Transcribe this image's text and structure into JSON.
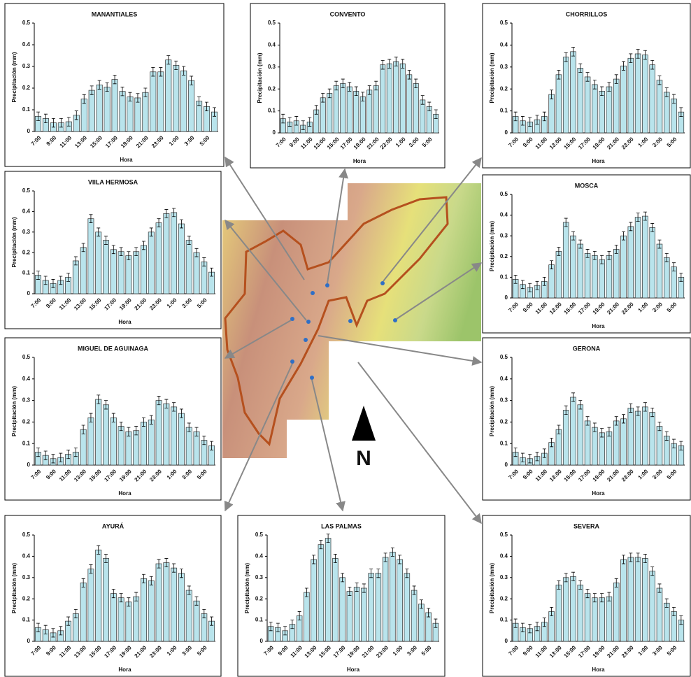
{
  "chart_data": [
    {
      "type": "bar",
      "title": "MANANTIALES",
      "y_label": "Precipitación (mm)",
      "x_label": "Hora",
      "categories": [
        "7:00",
        null,
        "9:00",
        null,
        "11:00",
        null,
        "13:00",
        null,
        "15:00",
        null,
        "17:00",
        null,
        "19:00",
        null,
        "21:00",
        null,
        "23:00",
        null,
        "1:00",
        null,
        "3:00",
        null,
        "5:00",
        null
      ],
      "values": [
        0.07,
        0.06,
        0.04,
        0.04,
        0.045,
        0.075,
        0.15,
        0.19,
        0.215,
        0.205,
        0.24,
        0.185,
        0.16,
        0.155,
        0.18,
        0.275,
        0.275,
        0.33,
        0.305,
        0.28,
        0.235,
        0.14,
        0.115,
        0.09
      ],
      "error": 0.02,
      "color": "#b9e4ec",
      "ylim": [
        0,
        0.5
      ],
      "yticks": [
        0,
        0.1,
        0.2,
        0.3,
        0.4,
        0.5
      ]
    },
    {
      "type": "bar",
      "title": "CONVENTO",
      "y_label": "Precipitación (mm)",
      "x_label": "Hora",
      "categories": [
        "7:00",
        null,
        "9:00",
        null,
        "11:00",
        null,
        "13:00",
        null,
        "15:00",
        null,
        "17:00",
        null,
        "19:00",
        null,
        "21:00",
        null,
        "23:00",
        null,
        "1:00",
        null,
        "3:00",
        null,
        "5:00",
        null
      ],
      "values": [
        0.065,
        0.05,
        0.055,
        0.035,
        0.05,
        0.105,
        0.16,
        0.18,
        0.215,
        0.225,
        0.21,
        0.19,
        0.165,
        0.195,
        0.215,
        0.31,
        0.315,
        0.325,
        0.315,
        0.265,
        0.225,
        0.15,
        0.12,
        0.085
      ],
      "error": 0.02,
      "color": "#b9e4ec",
      "ylim": [
        0,
        0.5
      ],
      "yticks": [
        0,
        0.1,
        0.2,
        0.3,
        0.4,
        0.5
      ]
    },
    {
      "type": "bar",
      "title": "CHORRILLOS",
      "y_label": "Precipitación (mm)",
      "x_label": "Hora",
      "categories": [
        "7:00",
        null,
        "9:00",
        null,
        "11:00",
        null,
        "13:00",
        null,
        "15:00",
        null,
        "17:00",
        null,
        "19:00",
        null,
        "21:00",
        null,
        "23:00",
        null,
        "1:00",
        null,
        "3:00",
        null,
        "5:00",
        null
      ],
      "values": [
        0.075,
        0.055,
        0.05,
        0.06,
        0.075,
        0.175,
        0.265,
        0.345,
        0.37,
        0.295,
        0.255,
        0.22,
        0.19,
        0.21,
        0.245,
        0.305,
        0.34,
        0.36,
        0.355,
        0.31,
        0.24,
        0.185,
        0.155,
        0.095
      ],
      "error": 0.02,
      "color": "#b9e4ec",
      "ylim": [
        0,
        0.5
      ],
      "yticks": [
        0,
        0.1,
        0.2,
        0.3,
        0.4,
        0.5
      ]
    },
    {
      "type": "bar",
      "title": "VIILA HERMOSA",
      "y_label": "Precipitación (mm)",
      "x_label": "Hora",
      "categories": [
        "7:00",
        null,
        "9:00",
        null,
        "11:00",
        null,
        "13:00",
        null,
        "15:00",
        null,
        "17:00",
        null,
        "19:00",
        null,
        "21:00",
        null,
        "23:00",
        null,
        "1:00",
        null,
        "3:00",
        null,
        "5:00",
        null
      ],
      "values": [
        0.09,
        0.065,
        0.05,
        0.065,
        0.08,
        0.16,
        0.225,
        0.365,
        0.3,
        0.26,
        0.215,
        0.205,
        0.185,
        0.205,
        0.235,
        0.3,
        0.345,
        0.39,
        0.395,
        0.34,
        0.26,
        0.2,
        0.155,
        0.105
      ],
      "error": 0.02,
      "color": "#b9e4ec",
      "ylim": [
        0,
        0.5
      ],
      "yticks": [
        0,
        0.1,
        0.2,
        0.3,
        0.4,
        0.5
      ]
    },
    {
      "type": "bar",
      "title": "MOSCA",
      "y_label": "Precipitación (mm)",
      "x_label": "Hora",
      "categories": [
        "7:00",
        null,
        "9:00",
        null,
        "11:00",
        null,
        "13:00",
        null,
        "15:00",
        null,
        "17:00",
        null,
        "19:00",
        null,
        "21:00",
        null,
        "23:00",
        null,
        "1:00",
        null,
        "3:00",
        null,
        "5:00",
        null
      ],
      "values": [
        0.09,
        0.065,
        0.05,
        0.06,
        0.08,
        0.16,
        0.225,
        0.365,
        0.3,
        0.26,
        0.215,
        0.205,
        0.185,
        0.205,
        0.235,
        0.3,
        0.345,
        0.39,
        0.395,
        0.34,
        0.26,
        0.195,
        0.15,
        0.1
      ],
      "error": 0.02,
      "color": "#b9e4ec",
      "ylim": [
        0,
        0.5
      ],
      "yticks": [
        0,
        0.1,
        0.2,
        0.3,
        0.4,
        0.5
      ]
    },
    {
      "type": "bar",
      "title": "MIGUEL DE AGUINAGA",
      "y_label": "Precipitación (mm)",
      "x_label": "Hora",
      "categories": [
        "7:00",
        null,
        "9:00",
        null,
        "11:00",
        null,
        "13:00",
        null,
        "15:00",
        null,
        "17:00",
        null,
        "19:00",
        null,
        "21:00",
        null,
        "23:00",
        null,
        "1:00",
        null,
        "3:00",
        null,
        "5:00",
        null
      ],
      "values": [
        0.06,
        0.045,
        0.03,
        0.035,
        0.05,
        0.06,
        0.165,
        0.22,
        0.305,
        0.28,
        0.22,
        0.18,
        0.155,
        0.16,
        0.2,
        0.21,
        0.3,
        0.285,
        0.27,
        0.24,
        0.175,
        0.155,
        0.115,
        0.09
      ],
      "error": 0.02,
      "color": "#b9e4ec",
      "ylim": [
        0,
        0.5
      ],
      "yticks": [
        0,
        0.1,
        0.2,
        0.3,
        0.4,
        0.5
      ]
    },
    {
      "type": "bar",
      "title": "GERONA",
      "y_label": "Precipitación (mm)",
      "x_label": "Hora",
      "categories": [
        "7:00",
        null,
        "9:00",
        null,
        "11:00",
        null,
        "13:00",
        null,
        "15:00",
        null,
        "17:00",
        null,
        "19:00",
        null,
        "21:00",
        null,
        "23:00",
        null,
        "1:00",
        null,
        "3:00",
        null,
        "5:00",
        null
      ],
      "values": [
        0.06,
        0.035,
        0.03,
        0.04,
        0.055,
        0.105,
        0.165,
        0.255,
        0.315,
        0.28,
        0.205,
        0.175,
        0.15,
        0.155,
        0.205,
        0.215,
        0.265,
        0.25,
        0.27,
        0.245,
        0.18,
        0.135,
        0.1,
        0.09
      ],
      "error": 0.02,
      "color": "#b9e4ec",
      "ylim": [
        0,
        0.5
      ],
      "yticks": [
        0,
        0.1,
        0.2,
        0.3,
        0.4,
        0.5
      ]
    },
    {
      "type": "bar",
      "title": "AYURÁ",
      "y_label": "Precipitación (mm)",
      "x_label": "Hora",
      "categories": [
        "7:00",
        null,
        "9:00",
        null,
        "11:00",
        null,
        "13:00",
        null,
        "15:00",
        null,
        "17:00",
        null,
        "19:00",
        null,
        "21:00",
        null,
        "23:00",
        null,
        "1:00",
        null,
        "3:00",
        null,
        "5:00",
        null
      ],
      "values": [
        0.065,
        0.055,
        0.04,
        0.05,
        0.095,
        0.13,
        0.275,
        0.34,
        0.43,
        0.39,
        0.225,
        0.205,
        0.185,
        0.21,
        0.295,
        0.285,
        0.365,
        0.37,
        0.345,
        0.32,
        0.24,
        0.19,
        0.13,
        0.095
      ],
      "error": 0.02,
      "color": "#b9e4ec",
      "ylim": [
        0,
        0.5
      ],
      "yticks": [
        0,
        0.1,
        0.2,
        0.3,
        0.4,
        0.5
      ]
    },
    {
      "type": "bar",
      "title": "LAS PALMAS",
      "y_label": "Precipitación (mm)",
      "x_label": "Hora",
      "categories": [
        "7:00",
        null,
        "9:00",
        null,
        "11:00",
        null,
        "13:00",
        null,
        "15:00",
        null,
        "17:00",
        null,
        "19:00",
        null,
        "21:00",
        null,
        "23:00",
        null,
        "1:00",
        null,
        "3:00",
        null,
        "5:00",
        null
      ],
      "values": [
        0.07,
        0.065,
        0.05,
        0.08,
        0.12,
        0.23,
        0.385,
        0.455,
        0.485,
        0.39,
        0.3,
        0.235,
        0.255,
        0.25,
        0.32,
        0.32,
        0.395,
        0.42,
        0.385,
        0.32,
        0.24,
        0.175,
        0.135,
        0.085
      ],
      "error": 0.02,
      "color": "#b9e4ec",
      "ylim": [
        0,
        0.5
      ],
      "yticks": [
        0,
        0.1,
        0.2,
        0.3,
        0.4,
        0.5
      ]
    },
    {
      "type": "bar",
      "title": "SEVERA",
      "y_label": "Precipitación (mm)",
      "x_label": "Hora",
      "categories": [
        "7:00",
        null,
        "9:00",
        null,
        "11:00",
        null,
        "13:00",
        null,
        "15:00",
        null,
        "17:00",
        null,
        "19:00",
        null,
        "21:00",
        null,
        "23:00",
        null,
        "1:00",
        null,
        "3:00",
        null,
        "5:00",
        null
      ],
      "values": [
        0.085,
        0.065,
        0.06,
        0.07,
        0.09,
        0.14,
        0.265,
        0.3,
        0.305,
        0.265,
        0.225,
        0.205,
        0.205,
        0.21,
        0.275,
        0.385,
        0.395,
        0.395,
        0.39,
        0.33,
        0.25,
        0.18,
        0.14,
        0.1
      ],
      "error": 0.02,
      "color": "#b9e4ec",
      "ylim": [
        0,
        0.5
      ],
      "yticks": [
        0,
        0.1,
        0.2,
        0.3,
        0.4,
        0.5
      ]
    }
  ],
  "map": {
    "north_label": "N"
  }
}
